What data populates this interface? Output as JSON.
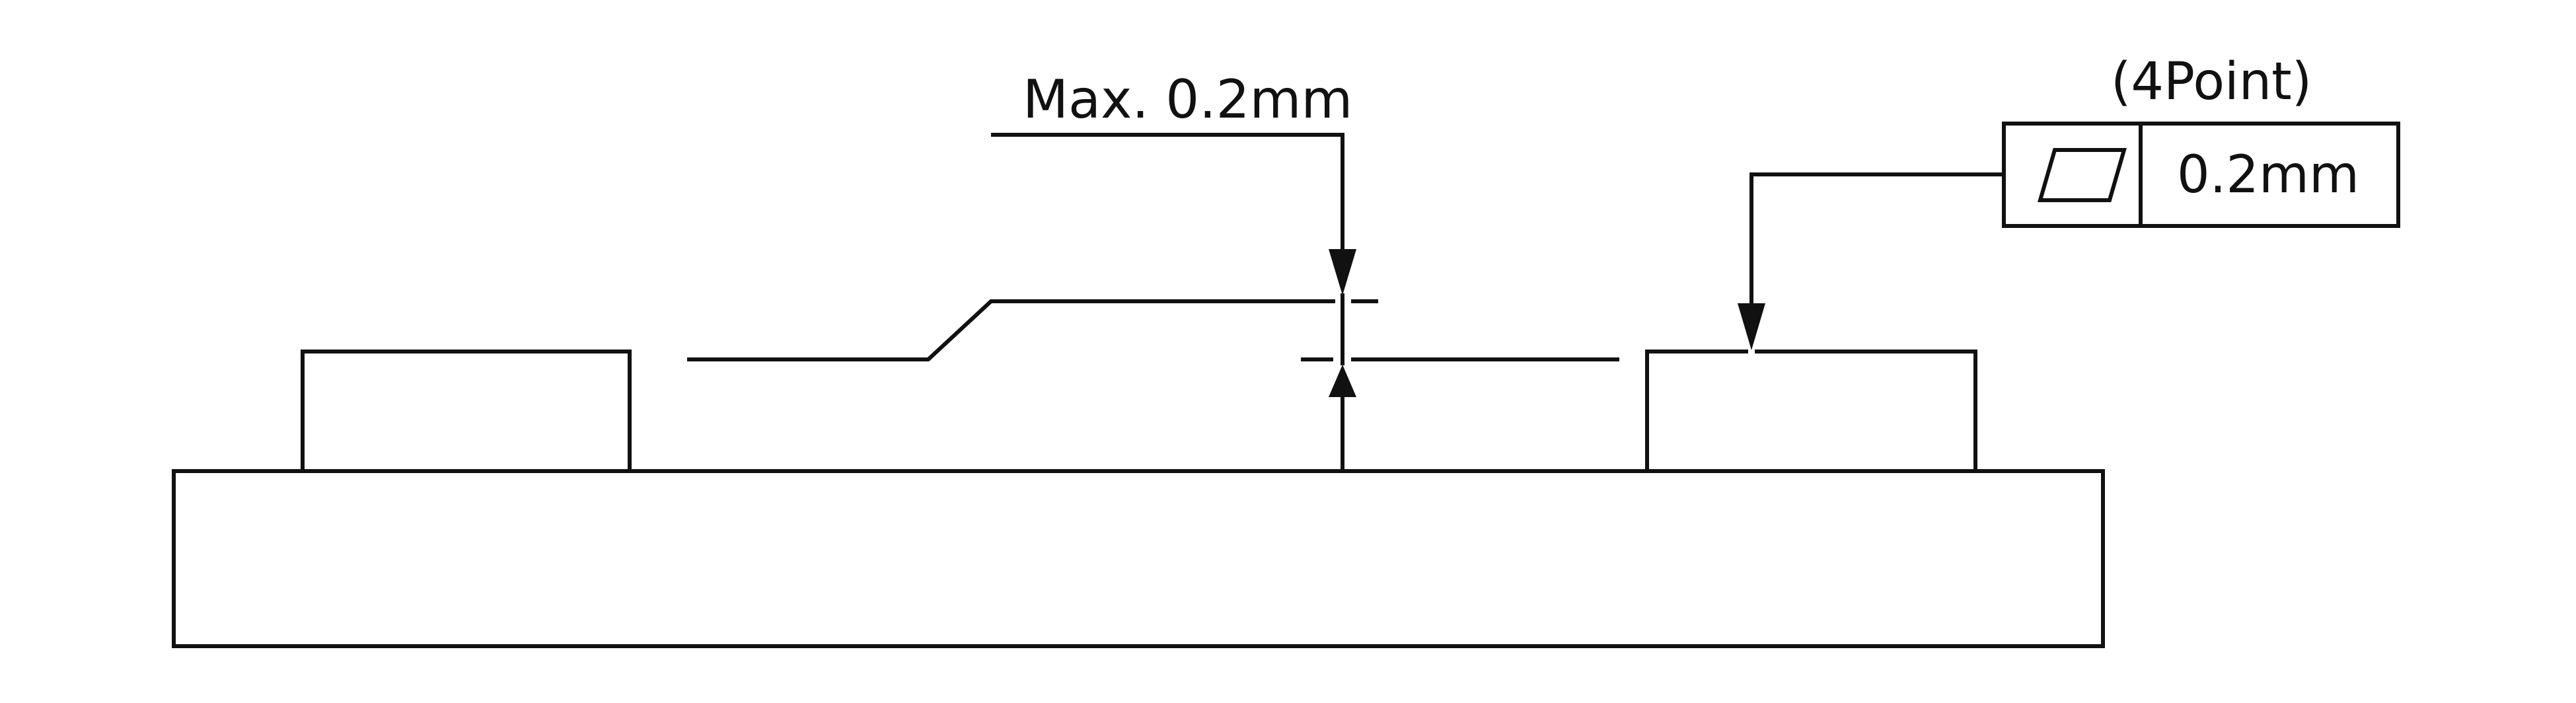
{
  "annotations": {
    "step_tolerance": "Max. 0.2mm",
    "flatness_points": "(4Point)",
    "flatness_value": "0.2mm"
  },
  "symbols": {
    "flatness_symbol": "parallelogram-flatness-icon"
  },
  "colors": {
    "line": "#111111",
    "background": "#ffffff"
  }
}
